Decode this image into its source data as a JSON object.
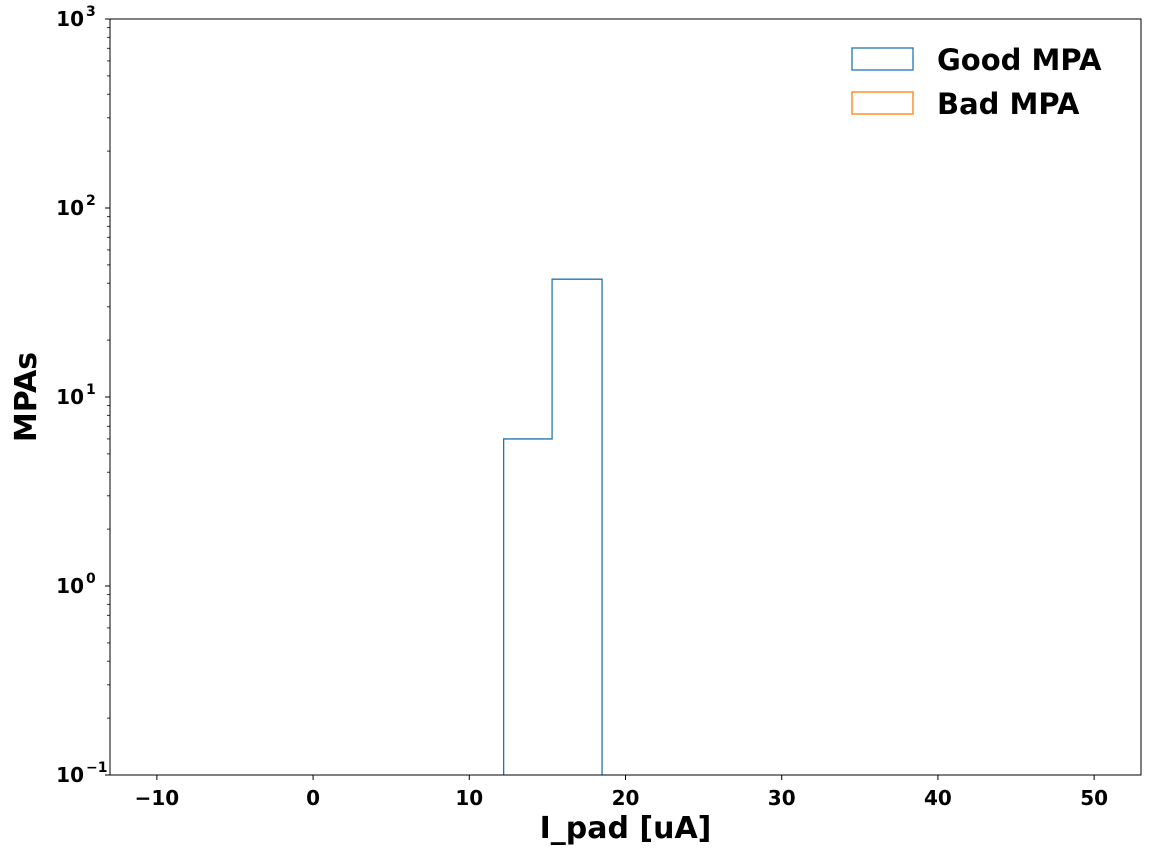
{
  "chart_data": {
    "type": "histogram",
    "xlabel": "I_pad [uA]",
    "ylabel": "MPAs",
    "xlim": [
      -13,
      53
    ],
    "ylim": [
      0.1,
      1000
    ],
    "yscale": "log",
    "x_ticks": [
      -10,
      0,
      10,
      20,
      30,
      40,
      50
    ],
    "x_tick_labels": [
      "−10",
      "0",
      "10",
      "20",
      "30",
      "40",
      "50"
    ],
    "y_ticks": [
      {
        "mantissa": "10",
        "exponent": "−1",
        "value": 0.1
      },
      {
        "mantissa": "10",
        "exponent": "0",
        "value": 1
      },
      {
        "mantissa": "10",
        "exponent": "1",
        "value": 10
      },
      {
        "mantissa": "10",
        "exponent": "2",
        "value": 100
      },
      {
        "mantissa": "10",
        "exponent": "3",
        "value": 1000
      }
    ],
    "grid": false,
    "legend_position": "top-right",
    "series": [
      {
        "name": "Good MPA",
        "color": "#1f77b4",
        "bin_edges": [
          12.2,
          15.3,
          18.5
        ],
        "counts": [
          6,
          42
        ]
      },
      {
        "name": "Bad MPA",
        "color": "#ff7f0e",
        "bin_edges": [],
        "counts": []
      }
    ]
  }
}
